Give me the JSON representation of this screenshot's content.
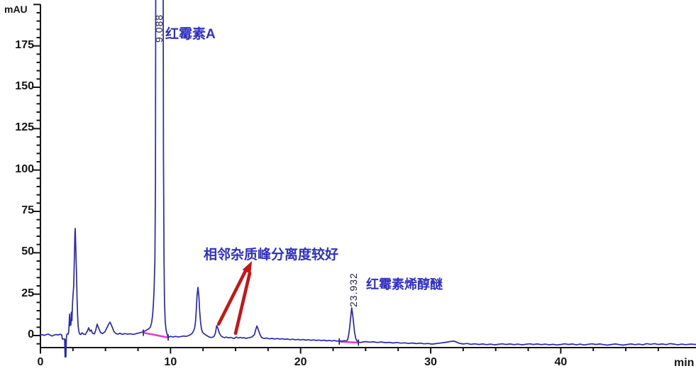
{
  "axes": {
    "y_unit": "mAU",
    "x_unit": "min"
  },
  "annotations": {
    "main_peak": "红霉素A",
    "separation_note": "相邻杂质峰分离度较好",
    "impurity_peak": "红霉素烯醇醚"
  },
  "colors": {
    "trace": "#2828b4",
    "integration_baseline": "#e03fc8",
    "annotation_text": "#3030c8",
    "arrow": "#c81414",
    "axis": "#161616",
    "peak_label": "#20204a"
  },
  "chart_data": {
    "type": "line",
    "title": "",
    "xlabel": "min",
    "ylabel": "mAU",
    "xlim": [
      0,
      50.4
    ],
    "ylim": [
      -13,
      200
    ],
    "grid": false,
    "x_major_ticks": [
      0,
      10,
      20,
      30,
      40
    ],
    "x_minor_tick_step": 2.5,
    "y_major_ticks": [
      0,
      25,
      50,
      75,
      100,
      125,
      150,
      175
    ],
    "y_top_tick": 200,
    "y_minor_tick_step": 5,
    "peaks": [
      {
        "rt_min": 9.088,
        "label": "9.088",
        "compound": "红霉素A",
        "height_mAU": 200,
        "clipped_at_top": true
      },
      {
        "rt_min": 23.932,
        "label": "23.932",
        "compound": "红霉素烯醇醚",
        "height_mAU": 16.7
      }
    ],
    "integration_baselines": [
      {
        "from": [
          7.91,
          1.7
        ],
        "to": [
          9.82,
          -1.2
        ]
      },
      {
        "from": [
          22.97,
          -3.6
        ],
        "to": [
          24.45,
          -4.3
        ]
      }
    ],
    "arrows": [
      {
        "from": [
          13.7,
          6.9
        ],
        "to": [
          15.87,
          40.7
        ]
      },
      {
        "from": [
          15.0,
          1.3
        ],
        "to": [
          16.09,
          37.7
        ]
      }
    ],
    "arrow_head_tip": [
      16.26,
      45.0
    ],
    "trace": [
      [
        0,
        0.3
      ],
      [
        0.15,
        0.5
      ],
      [
        0.3,
        0.1
      ],
      [
        0.45,
        0.6
      ],
      [
        0.6,
        0.9
      ],
      [
        0.75,
        0.2
      ],
      [
        0.9,
        -0.3
      ],
      [
        1.05,
        0.3
      ],
      [
        1.2,
        0.6
      ],
      [
        1.35,
        0.3
      ],
      [
        1.5,
        0.8
      ],
      [
        1.6,
        0.5
      ],
      [
        1.64,
        0.3
      ],
      [
        1.68,
        -2.1
      ],
      [
        1.86,
        -2.1
      ],
      [
        1.89,
        -12.9
      ],
      [
        1.92,
        -2.6
      ],
      [
        1.96,
        -12.9
      ],
      [
        1.99,
        -2.1
      ],
      [
        2.02,
        0.4
      ],
      [
        2.06,
        0.9
      ],
      [
        2.1,
        1.1
      ],
      [
        2.14,
        0.9
      ],
      [
        2.18,
        3
      ],
      [
        2.24,
        12.9
      ],
      [
        2.27,
        6
      ],
      [
        2.3,
        7.7
      ],
      [
        2.34,
        6.4
      ],
      [
        2.38,
        14.1
      ],
      [
        2.42,
        9
      ],
      [
        2.46,
        18.4
      ],
      [
        2.51,
        24.9
      ],
      [
        2.56,
        30
      ],
      [
        2.6,
        45
      ],
      [
        2.65,
        62
      ],
      [
        2.67,
        64.7
      ],
      [
        2.72,
        52
      ],
      [
        2.77,
        38
      ],
      [
        2.81,
        24
      ],
      [
        2.86,
        12
      ],
      [
        2.9,
        5.6
      ],
      [
        2.95,
        2.6
      ],
      [
        3,
        1.1
      ],
      [
        3.1,
        0.6
      ],
      [
        3.2,
        1.7
      ],
      [
        3.3,
        0.9
      ],
      [
        3.45,
        0.6
      ],
      [
        3.6,
        2.6
      ],
      [
        3.71,
        4.7
      ],
      [
        3.8,
        2.6
      ],
      [
        3.9,
        3.4
      ],
      [
        4,
        1.4
      ],
      [
        4.15,
        1
      ],
      [
        4.25,
        3.2
      ],
      [
        4.36,
        6.9
      ],
      [
        4.5,
        4
      ],
      [
        4.62,
        1.8
      ],
      [
        4.78,
        1.2
      ],
      [
        4.95,
        2.2
      ],
      [
        5.1,
        4.5
      ],
      [
        5.25,
        7
      ],
      [
        5.35,
        8.1
      ],
      [
        5.5,
        5.5
      ],
      [
        5.65,
        2.4
      ],
      [
        5.8,
        1.2
      ],
      [
        5.95,
        0.8
      ],
      [
        6.1,
        1.4
      ],
      [
        6.3,
        0.7
      ],
      [
        6.5,
        1.2
      ],
      [
        6.7,
        0.8
      ],
      [
        6.9,
        1.1
      ],
      [
        7.1,
        0.7
      ],
      [
        7.3,
        1
      ],
      [
        7.5,
        1.4
      ],
      [
        7.7,
        1.8
      ],
      [
        7.91,
        2.3
      ],
      [
        8.1,
        3
      ],
      [
        8.3,
        3.9
      ],
      [
        8.45,
        5
      ],
      [
        8.55,
        8
      ],
      [
        8.62,
        12
      ],
      [
        8.68,
        18
      ],
      [
        8.74,
        28
      ],
      [
        8.8,
        45
      ],
      [
        8.84,
        90
      ],
      [
        8.87,
        235
      ],
      [
        9.43,
        235
      ],
      [
        9.46,
        110
      ],
      [
        9.5,
        45
      ],
      [
        9.54,
        20
      ],
      [
        9.59,
        9
      ],
      [
        9.65,
        4
      ],
      [
        9.72,
        1.2
      ],
      [
        9.8,
        -0.5
      ],
      [
        9.88,
        -1
      ],
      [
        10,
        -0.5
      ],
      [
        10.2,
        -0.9
      ],
      [
        10.4,
        -0.5
      ],
      [
        10.6,
        -0.9
      ],
      [
        10.8,
        -0.6
      ],
      [
        11,
        -0.3
      ],
      [
        11.2,
        -0.5
      ],
      [
        11.4,
        0
      ],
      [
        11.55,
        0.6
      ],
      [
        11.68,
        1.5
      ],
      [
        11.78,
        3
      ],
      [
        11.85,
        4.5
      ],
      [
        11.92,
        8
      ],
      [
        11.98,
        15
      ],
      [
        12.04,
        24
      ],
      [
        12.11,
        29.1
      ],
      [
        12.18,
        24
      ],
      [
        12.24,
        15
      ],
      [
        12.31,
        8
      ],
      [
        12.38,
        4
      ],
      [
        12.46,
        2
      ],
      [
        12.56,
        1.2
      ],
      [
        12.68,
        0.5
      ],
      [
        12.82,
        -0.2
      ],
      [
        12.96,
        -0.8
      ],
      [
        13.1,
        -1.2
      ],
      [
        13.25,
        -1
      ],
      [
        13.35,
        -0.4
      ],
      [
        13.45,
        1.5
      ],
      [
        13.55,
        6
      ],
      [
        13.64,
        4.5
      ],
      [
        13.75,
        1.5
      ],
      [
        13.88,
        -0.2
      ],
      [
        14,
        -0.9
      ],
      [
        14.15,
        -1.3
      ],
      [
        14.3,
        -0.9
      ],
      [
        14.45,
        -1.4
      ],
      [
        14.6,
        -1.1
      ],
      [
        14.75,
        -1.5
      ],
      [
        14.9,
        -1.8
      ],
      [
        15.05,
        -0.9
      ],
      [
        15.2,
        -1.5
      ],
      [
        15.35,
        -1.1
      ],
      [
        15.5,
        -1.5
      ],
      [
        15.65,
        -1.3
      ],
      [
        15.8,
        -1.7
      ],
      [
        15.95,
        -1.4
      ],
      [
        16.1,
        -1.2
      ],
      [
        16.25,
        -0.9
      ],
      [
        16.45,
        0.5
      ],
      [
        16.55,
        3.5
      ],
      [
        16.64,
        5.8
      ],
      [
        16.75,
        3.5
      ],
      [
        16.88,
        0.5
      ],
      [
        17,
        -1.2
      ],
      [
        17.2,
        -1.8
      ],
      [
        17.4,
        -1.5
      ],
      [
        17.6,
        -2
      ],
      [
        17.8,
        -1.7
      ],
      [
        18,
        -2.1
      ],
      [
        18.2,
        -1.8
      ],
      [
        18.4,
        -2.2
      ],
      [
        18.6,
        -1.9
      ],
      [
        18.8,
        -2.3
      ],
      [
        19,
        -2.1
      ],
      [
        19.2,
        -2.5
      ],
      [
        19.4,
        -2.2
      ],
      [
        19.6,
        -2.6
      ],
      [
        19.8,
        -2.3
      ],
      [
        20,
        -2.7
      ],
      [
        20.2,
        -2.4
      ],
      [
        20.4,
        -2.8
      ],
      [
        20.6,
        -2.5
      ],
      [
        20.8,
        -2.9
      ],
      [
        21,
        -2.6
      ],
      [
        21.2,
        -3
      ],
      [
        21.4,
        -2.7
      ],
      [
        21.6,
        -3.1
      ],
      [
        21.8,
        -2.8
      ],
      [
        22,
        -3.2
      ],
      [
        22.2,
        -2.9
      ],
      [
        22.4,
        -3.3
      ],
      [
        22.6,
        -3
      ],
      [
        22.8,
        -3.4
      ],
      [
        23,
        -3.2
      ],
      [
        23.2,
        -3.4
      ],
      [
        23.35,
        -3.1
      ],
      [
        23.5,
        -3.3
      ],
      [
        23.62,
        -2.6
      ],
      [
        23.7,
        0.5
      ],
      [
        23.78,
        5.5
      ],
      [
        23.85,
        11
      ],
      [
        23.93,
        16.7
      ],
      [
        24,
        13
      ],
      [
        24.08,
        7
      ],
      [
        24.16,
        1.5
      ],
      [
        24.25,
        -2
      ],
      [
        24.35,
        -3.4
      ],
      [
        24.45,
        -4
      ],
      [
        24.6,
        -4.2
      ],
      [
        24.8,
        -3.9
      ],
      [
        25,
        -3.7
      ],
      [
        25.3,
        -4
      ],
      [
        25.6,
        -3.8
      ],
      [
        25.9,
        -4.2
      ],
      [
        26.2,
        -3.9
      ],
      [
        26.5,
        -4.3
      ],
      [
        26.8,
        -4.1
      ],
      [
        27.1,
        -4.5
      ],
      [
        27.4,
        -4.2
      ],
      [
        27.7,
        -4.6
      ],
      [
        28,
        -4.4
      ],
      [
        28.3,
        -4.8
      ],
      [
        28.6,
        -4.5
      ],
      [
        28.9,
        -4.9
      ],
      [
        29.2,
        -4.6
      ],
      [
        29.5,
        -5
      ],
      [
        29.8,
        -4.8
      ],
      [
        30.1,
        -5.2
      ],
      [
        30.4,
        -4.9
      ],
      [
        30.7,
        -4.6
      ],
      [
        31,
        -4.3
      ],
      [
        31.3,
        -3.9
      ],
      [
        31.6,
        -3.5
      ],
      [
        31.8,
        -3.4
      ],
      [
        32,
        -4
      ],
      [
        32.2,
        -4.7
      ],
      [
        32.5,
        -5.1
      ],
      [
        32.8,
        -4.8
      ],
      [
        33.1,
        -5.3
      ],
      [
        33.4,
        -5
      ],
      [
        33.7,
        -5.4
      ],
      [
        34,
        -5.1
      ],
      [
        34.3,
        -5.5
      ],
      [
        34.6,
        -5.2
      ],
      [
        34.9,
        -5.6
      ],
      [
        35.2,
        -5.3
      ],
      [
        35.5,
        -5
      ],
      [
        35.8,
        -5.4
      ],
      [
        36.1,
        -5.1
      ],
      [
        36.4,
        -5.5
      ],
      [
        36.7,
        -5.2
      ],
      [
        37,
        -5.6
      ],
      [
        37.3,
        -5.3
      ],
      [
        37.6,
        -5
      ],
      [
        37.9,
        -5.4
      ],
      [
        38.2,
        -5.1
      ],
      [
        38.5,
        -5.5
      ],
      [
        38.8,
        -5.2
      ],
      [
        39.1,
        -5.6
      ],
      [
        39.4,
        -5.3
      ],
      [
        39.7,
        -5.7
      ],
      [
        40,
        -5.4
      ],
      [
        40.3,
        -5
      ],
      [
        40.6,
        -5.4
      ],
      [
        40.9,
        -5.1
      ],
      [
        41.2,
        -5.6
      ],
      [
        41.5,
        -5.2
      ],
      [
        41.8,
        -5.7
      ],
      [
        42.1,
        -5.3
      ],
      [
        42.4,
        -5
      ],
      [
        42.7,
        -5.4
      ],
      [
        43,
        -5.1
      ],
      [
        43.3,
        -5.5
      ],
      [
        43.6,
        -5.8
      ],
      [
        43.9,
        -5.4
      ],
      [
        44.2,
        -5.1
      ],
      [
        44.5,
        -5.5
      ],
      [
        44.8,
        -5.8
      ],
      [
        45.1,
        -5.4
      ],
      [
        45.4,
        -5.1
      ],
      [
        45.7,
        -5.5
      ],
      [
        46,
        -5.2
      ],
      [
        46.3,
        -5.6
      ],
      [
        46.6,
        -4.9
      ],
      [
        46.9,
        -5.3
      ],
      [
        47.2,
        -4.9
      ],
      [
        47.5,
        -5.4
      ],
      [
        47.8,
        -5.1
      ],
      [
        48.1,
        -5.5
      ],
      [
        48.4,
        -4.9
      ],
      [
        48.7,
        -5.2
      ],
      [
        49,
        -5.6
      ],
      [
        49.3,
        -5.2
      ],
      [
        49.6,
        -5.5
      ],
      [
        50,
        -5.2
      ],
      [
        50.4,
        -5.4
      ]
    ]
  }
}
